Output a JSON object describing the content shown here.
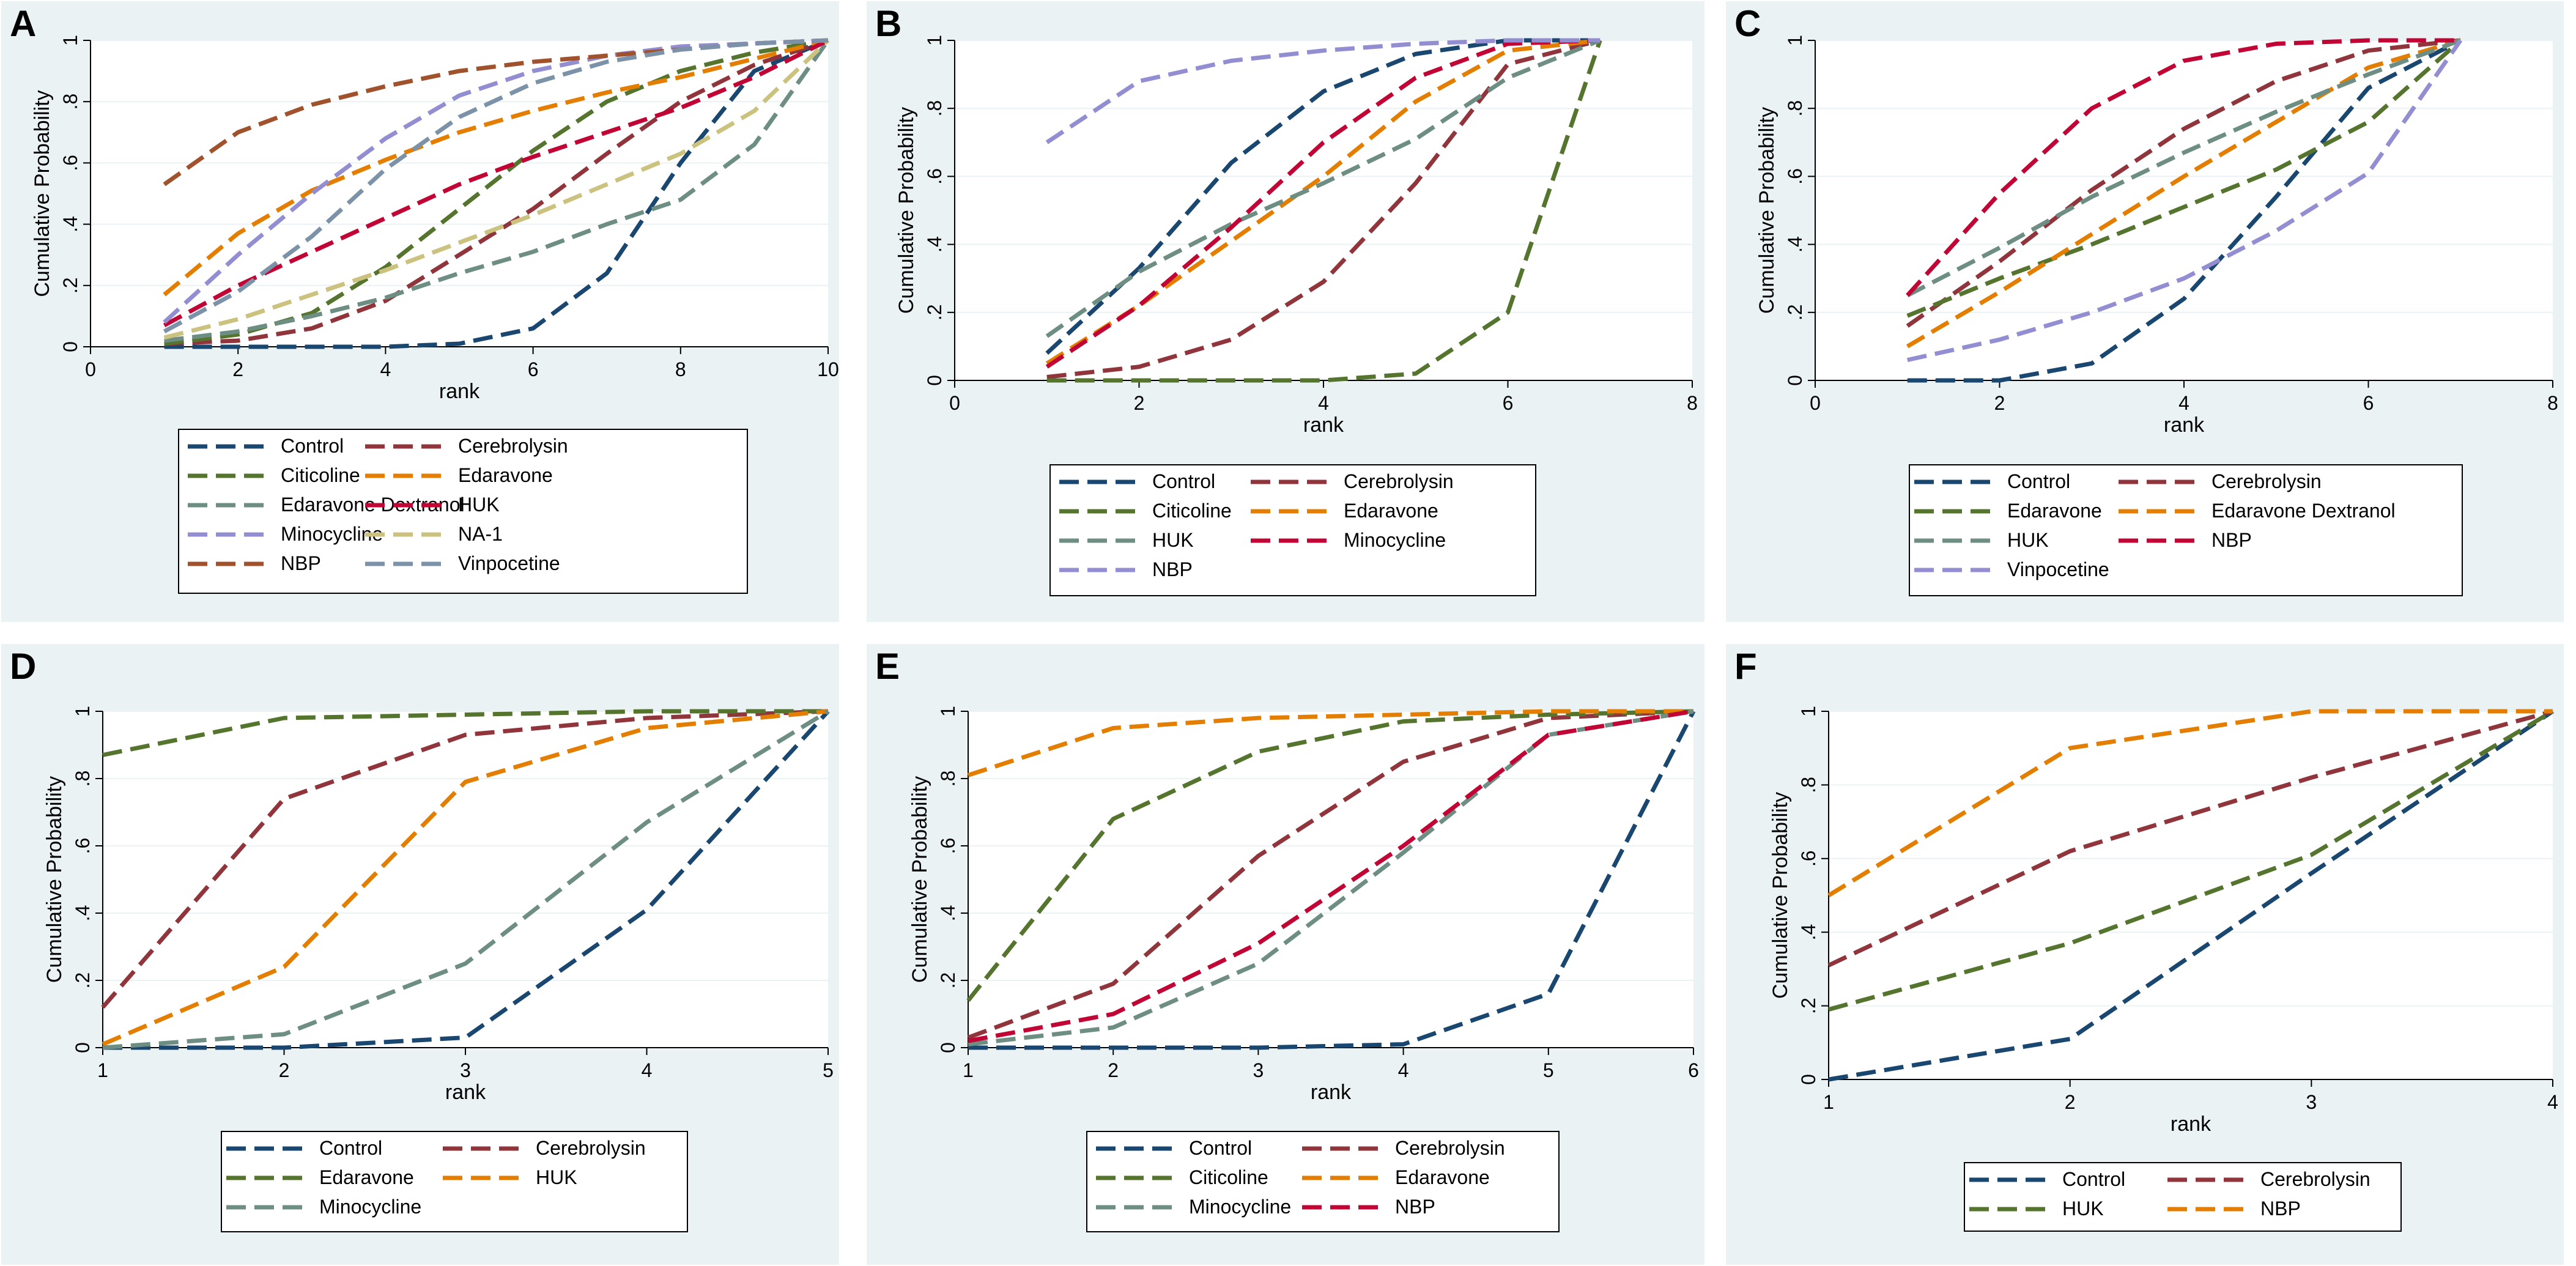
{
  "chart_data": [
    {
      "panel": "A",
      "type": "line",
      "xlabel": "rank",
      "ylabel": "Cumulative Probability",
      "xlim": [
        0,
        10
      ],
      "ylim": [
        0,
        1
      ],
      "xticks": [
        "0",
        "2",
        "4",
        "6",
        "8",
        "10"
      ],
      "xtick_values": [
        0,
        2,
        4,
        6,
        8,
        10
      ],
      "yticks": [
        "0",
        ".2",
        ".4",
        ".6",
        ".8",
        "1"
      ],
      "ytick_values": [
        0,
        0.2,
        0.4,
        0.6,
        0.8,
        1
      ],
      "x": [
        1,
        2,
        3,
        4,
        5,
        6,
        7,
        8,
        9,
        10
      ],
      "series": [
        {
          "name": "Control",
          "color": "#1a476f",
          "values": [
            0,
            0,
            0,
            0,
            0.01,
            0.06,
            0.24,
            0.6,
            0.9,
            1
          ]
        },
        {
          "name": "Cerebrolysin",
          "color": "#90353b",
          "values": [
            0.01,
            0.02,
            0.06,
            0.15,
            0.3,
            0.45,
            0.63,
            0.8,
            0.92,
            1
          ]
        },
        {
          "name": "Citicoline",
          "color": "#55752f",
          "values": [
            0.01,
            0.04,
            0.11,
            0.26,
            0.45,
            0.64,
            0.8,
            0.9,
            0.96,
            1
          ]
        },
        {
          "name": "Edaravone",
          "color": "#e37e00",
          "values": [
            0.17,
            0.37,
            0.51,
            0.61,
            0.7,
            0.77,
            0.83,
            0.88,
            0.94,
            1
          ]
        },
        {
          "name": "Edaravone Dextranol",
          "color": "#6e8e84",
          "values": [
            0.02,
            0.05,
            0.1,
            0.16,
            0.24,
            0.31,
            0.4,
            0.48,
            0.66,
            1
          ]
        },
        {
          "name": "HUK",
          "color": "#c10534",
          "values": [
            0.07,
            0.2,
            0.31,
            0.42,
            0.53,
            0.62,
            0.7,
            0.78,
            0.88,
            1
          ]
        },
        {
          "name": "Minocycline",
          "color": "#938dd2",
          "values": [
            0.08,
            0.3,
            0.5,
            0.68,
            0.82,
            0.9,
            0.95,
            0.98,
            0.99,
            1
          ]
        },
        {
          "name": "NA-1",
          "color": "#cac27e",
          "values": [
            0.03,
            0.09,
            0.17,
            0.25,
            0.34,
            0.43,
            0.53,
            0.63,
            0.77,
            1
          ]
        },
        {
          "name": "NBP",
          "color": "#a0522d",
          "values": [
            0.53,
            0.7,
            0.79,
            0.85,
            0.9,
            0.93,
            0.95,
            0.97,
            0.99,
            1
          ]
        },
        {
          "name": "Vinpocetine",
          "color": "#7b92a8",
          "values": [
            0.05,
            0.18,
            0.36,
            0.58,
            0.75,
            0.86,
            0.93,
            0.97,
            0.99,
            1
          ]
        }
      ],
      "legend": {
        "columns": 2,
        "placement": "bottom"
      }
    },
    {
      "panel": "B",
      "type": "line",
      "xlabel": "rank",
      "ylabel": "Cumulative Probability",
      "xlim": [
        0,
        8
      ],
      "ylim": [
        0,
        1
      ],
      "xticks": [
        "0",
        "2",
        "4",
        "6",
        "8"
      ],
      "xtick_values": [
        0,
        2,
        4,
        6,
        8
      ],
      "yticks": [
        "0",
        ".2",
        ".4",
        ".6",
        ".8",
        "1"
      ],
      "ytick_values": [
        0,
        0.2,
        0.4,
        0.6,
        0.8,
        1
      ],
      "x": [
        1,
        2,
        3,
        4,
        5,
        6,
        7
      ],
      "series": [
        {
          "name": "Control",
          "color": "#1a476f",
          "values": [
            0.08,
            0.33,
            0.64,
            0.85,
            0.96,
            1,
            1
          ]
        },
        {
          "name": "Cerebrolysin",
          "color": "#90353b",
          "values": [
            0.01,
            0.04,
            0.12,
            0.29,
            0.58,
            0.93,
            1
          ]
        },
        {
          "name": "Citicoline",
          "color": "#55752f",
          "values": [
            0,
            0,
            0,
            0,
            0.02,
            0.2,
            1
          ]
        },
        {
          "name": "Edaravone",
          "color": "#e37e00",
          "values": [
            0.05,
            0.22,
            0.41,
            0.6,
            0.82,
            0.97,
            1
          ]
        },
        {
          "name": "HUK",
          "color": "#6e8e84",
          "values": [
            0.13,
            0.32,
            0.46,
            0.58,
            0.71,
            0.89,
            1
          ]
        },
        {
          "name": "Minocycline",
          "color": "#c10534",
          "values": [
            0.04,
            0.22,
            0.45,
            0.7,
            0.89,
            0.99,
            1
          ]
        },
        {
          "name": "NBP",
          "color": "#938dd2",
          "values": [
            0.7,
            0.88,
            0.94,
            0.97,
            0.99,
            1,
            1
          ]
        }
      ],
      "legend": {
        "columns": 2,
        "placement": "bottom"
      }
    },
    {
      "panel": "C",
      "type": "line",
      "xlabel": "rank",
      "ylabel": "Cumulative Probability",
      "xlim": [
        0,
        8
      ],
      "ylim": [
        0,
        1
      ],
      "xticks": [
        "0",
        "2",
        "4",
        "6",
        "8"
      ],
      "xtick_values": [
        0,
        2,
        4,
        6,
        8
      ],
      "yticks": [
        "0",
        ".2",
        ".4",
        ".6",
        ".8",
        "1"
      ],
      "ytick_values": [
        0,
        0.2,
        0.4,
        0.6,
        0.8,
        1
      ],
      "x": [
        1,
        2,
        3,
        4,
        5,
        6,
        7
      ],
      "series": [
        {
          "name": "Control",
          "color": "#1a476f",
          "values": [
            0,
            0,
            0.05,
            0.24,
            0.54,
            0.86,
            1
          ]
        },
        {
          "name": "Cerebrolysin",
          "color": "#90353b",
          "values": [
            0.16,
            0.35,
            0.56,
            0.74,
            0.88,
            0.97,
            1
          ]
        },
        {
          "name": "Edaravone",
          "color": "#55752f",
          "values": [
            0.19,
            0.3,
            0.4,
            0.51,
            0.62,
            0.76,
            1
          ]
        },
        {
          "name": "Edaravone Dextranol",
          "color": "#e37e00",
          "values": [
            0.1,
            0.26,
            0.43,
            0.6,
            0.76,
            0.92,
            1
          ]
        },
        {
          "name": "HUK",
          "color": "#6e8e84",
          "values": [
            0.25,
            0.39,
            0.54,
            0.67,
            0.79,
            0.9,
            1
          ]
        },
        {
          "name": "NBP",
          "color": "#c10534",
          "values": [
            0.25,
            0.55,
            0.8,
            0.94,
            0.99,
            1,
            1
          ]
        },
        {
          "name": "Vinpocetine",
          "color": "#938dd2",
          "values": [
            0.06,
            0.12,
            0.2,
            0.3,
            0.44,
            0.61,
            1
          ]
        }
      ],
      "legend": {
        "columns": 2,
        "placement": "bottom"
      }
    },
    {
      "panel": "D",
      "type": "line",
      "xlabel": "rank",
      "ylabel": "Cumulative Probability",
      "xlim": [
        1,
        5
      ],
      "ylim": [
        0,
        1
      ],
      "xticks": [
        "1",
        "2",
        "3",
        "4",
        "5"
      ],
      "xtick_values": [
        1,
        2,
        3,
        4,
        5
      ],
      "yticks": [
        "0",
        ".2",
        ".4",
        ".6",
        ".8",
        "1"
      ],
      "ytick_values": [
        0,
        0.2,
        0.4,
        0.6,
        0.8,
        1
      ],
      "x": [
        1,
        2,
        3,
        4,
        5
      ],
      "series": [
        {
          "name": "Control",
          "color": "#1a476f",
          "values": [
            0,
            0,
            0.03,
            0.41,
            1
          ]
        },
        {
          "name": "Cerebrolysin",
          "color": "#90353b",
          "values": [
            0.12,
            0.74,
            0.93,
            0.98,
            1
          ]
        },
        {
          "name": "Edaravone",
          "color": "#55752f",
          "values": [
            0.87,
            0.98,
            0.99,
            1,
            1
          ]
        },
        {
          "name": "HUK",
          "color": "#e37e00",
          "values": [
            0.01,
            0.24,
            0.79,
            0.95,
            1
          ]
        },
        {
          "name": "Minocycline",
          "color": "#6e8e84",
          "values": [
            0,
            0.04,
            0.25,
            0.67,
            1
          ]
        }
      ],
      "legend": {
        "columns": 2,
        "placement": "bottom"
      }
    },
    {
      "panel": "E",
      "type": "line",
      "xlabel": "rank",
      "ylabel": "Cumulative Probability",
      "xlim": [
        1,
        6
      ],
      "ylim": [
        0,
        1
      ],
      "xticks": [
        "1",
        "2",
        "3",
        "4",
        "5",
        "6"
      ],
      "xtick_values": [
        1,
        2,
        3,
        4,
        5,
        6
      ],
      "yticks": [
        "0",
        ".2",
        ".4",
        ".6",
        ".8",
        "1"
      ],
      "ytick_values": [
        0,
        0.2,
        0.4,
        0.6,
        0.8,
        1
      ],
      "x": [
        1,
        2,
        3,
        4,
        5,
        6
      ],
      "series": [
        {
          "name": "Control",
          "color": "#1a476f",
          "values": [
            0,
            0,
            0,
            0.01,
            0.16,
            1
          ]
        },
        {
          "name": "Cerebrolysin",
          "color": "#90353b",
          "values": [
            0.03,
            0.19,
            0.57,
            0.85,
            0.98,
            1
          ]
        },
        {
          "name": "Citicoline",
          "color": "#55752f",
          "values": [
            0.14,
            0.68,
            0.88,
            0.97,
            0.99,
            1
          ]
        },
        {
          "name": "Edaravone",
          "color": "#e37e00",
          "values": [
            0.81,
            0.95,
            0.98,
            0.99,
            1,
            1
          ]
        },
        {
          "name": "Minocycline",
          "color": "#6e8e84",
          "values": [
            0.01,
            0.06,
            0.25,
            0.58,
            0.93,
            1
          ]
        },
        {
          "name": "NBP",
          "color": "#c10534",
          "values": [
            0.02,
            0.1,
            0.31,
            0.6,
            0.93,
            1
          ]
        }
      ],
      "legend": {
        "columns": 2,
        "placement": "bottom"
      }
    },
    {
      "panel": "F",
      "type": "line",
      "xlabel": "rank",
      "ylabel": "Cumulative Probability",
      "xlim": [
        1,
        4
      ],
      "ylim": [
        0,
        1
      ],
      "xticks": [
        "1",
        "2",
        "3",
        "4"
      ],
      "xtick_values": [
        1,
        2,
        3,
        4
      ],
      "yticks": [
        "0",
        ".2",
        ".4",
        ".6",
        ".8",
        "1"
      ],
      "ytick_values": [
        0,
        0.2,
        0.4,
        0.6,
        0.8,
        1
      ],
      "x": [
        1,
        2,
        3,
        4
      ],
      "series": [
        {
          "name": "Control",
          "color": "#1a476f",
          "values": [
            0,
            0.11,
            0.56,
            1
          ]
        },
        {
          "name": "Cerebrolysin",
          "color": "#90353b",
          "values": [
            0.31,
            0.62,
            0.82,
            1
          ]
        },
        {
          "name": "HUK",
          "color": "#55752f",
          "values": [
            0.19,
            0.37,
            0.61,
            1
          ]
        },
        {
          "name": "NBP",
          "color": "#e37e00",
          "values": [
            0.5,
            0.9,
            1,
            1
          ]
        }
      ],
      "legend": {
        "columns": 2,
        "placement": "bottom"
      }
    }
  ],
  "style": {
    "panel_background": "#eaf2f3",
    "plot_background": "#ffffff",
    "grid_color": "#eaf2f3"
  }
}
